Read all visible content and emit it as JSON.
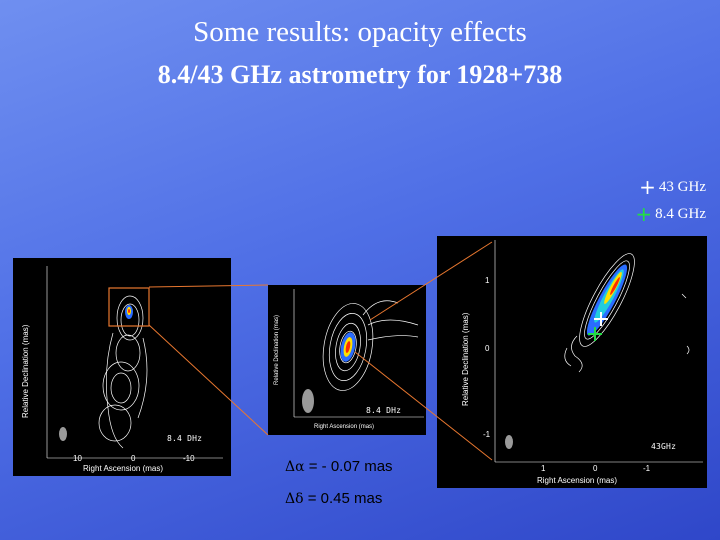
{
  "slide": {
    "title": "Some results: opacity effects",
    "subtitle": "8.4/43 GHz astrometry for 1928+738"
  },
  "legend": [
    {
      "label": "43 GHz",
      "color": "#ffffff"
    },
    {
      "label": "8.4 GHz",
      "color": "#22dd44"
    }
  ],
  "panels": {
    "left": {
      "band_label": "8.4 DHz",
      "ylabel": "Relative Declination (mas)",
      "xlabel": "Right Ascension (mas)",
      "xticks": [
        "10",
        "0",
        "-10"
      ]
    },
    "middle": {
      "band_label": "8.4 DHz",
      "ylabel": "Relative Declination (mas)",
      "xlabel": "Right Ascension (mas)"
    },
    "right": {
      "band_label": "43GHz",
      "ylabel": "Relative Declination (mas)",
      "xlabel": "Right Ascension (mas)",
      "xticks": [
        "1",
        "0",
        "-1"
      ],
      "yticks": [
        "1",
        "0",
        "-1"
      ]
    }
  },
  "offsets": {
    "ra": {
      "symbol": "Δα",
      "text": " = - 0.07 mas"
    },
    "dec": {
      "symbol": "Δδ",
      "text": " = 0.45 mas"
    }
  },
  "colors": {
    "frame": "#e8772f",
    "green_cross": "#22dd44"
  }
}
